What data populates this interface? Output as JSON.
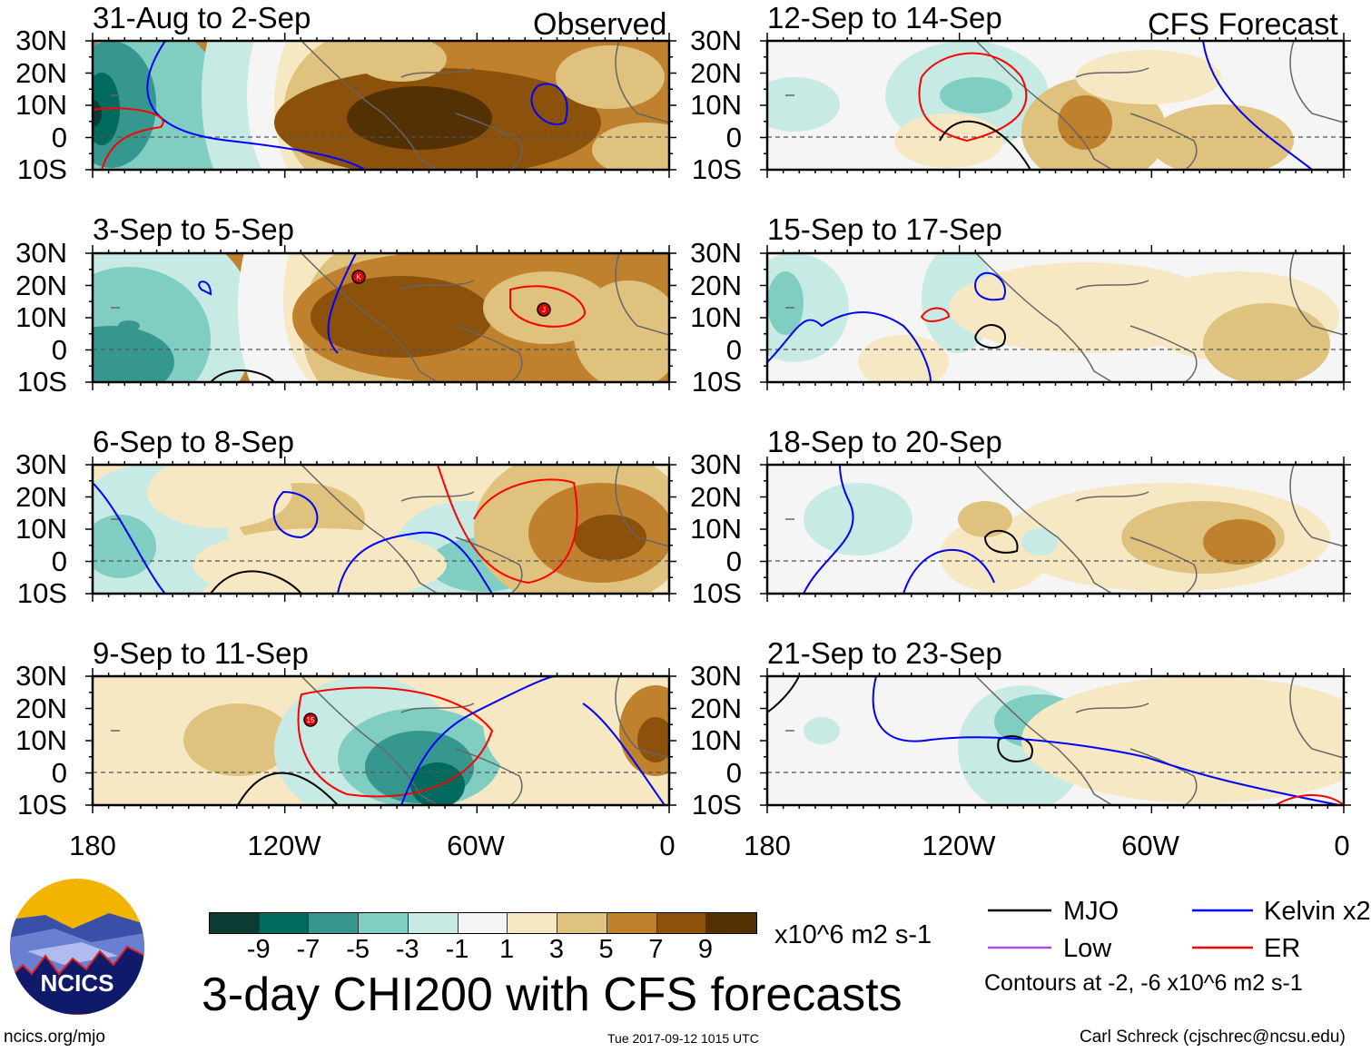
{
  "header": {
    "observed_label": "Observed",
    "forecast_label": "CFS Forecast"
  },
  "panels": [
    {
      "title": "31-Aug to 2-Sep",
      "type": "observed",
      "storms": []
    },
    {
      "title": "3-Sep to 5-Sep",
      "type": "observed",
      "storms": [
        "K",
        "J"
      ]
    },
    {
      "title": "6-Sep to 8-Sep",
      "type": "observed",
      "storms": []
    },
    {
      "title": "9-Sep to 11-Sep",
      "type": "observed",
      "storms": [
        "15"
      ]
    },
    {
      "title": "12-Sep to 14-Sep",
      "type": "forecast",
      "storms": []
    },
    {
      "title": "15-Sep to 17-Sep",
      "type": "forecast",
      "storms": []
    },
    {
      "title": "18-Sep to 20-Sep",
      "type": "forecast",
      "storms": []
    },
    {
      "title": "21-Sep to 23-Sep",
      "type": "forecast",
      "storms": []
    }
  ],
  "axes": {
    "lat_labels": [
      "30N",
      "20N",
      "10N",
      "0",
      "10S"
    ],
    "lon_labels": [
      "180",
      "120W",
      "60W",
      "0"
    ]
  },
  "colorbar": {
    "labels": [
      "-9",
      "-7",
      "-5",
      "-3",
      "-1",
      "1",
      "3",
      "5",
      "7",
      "9"
    ],
    "colors": [
      "#0b3b32",
      "#016a5e",
      "#36978f",
      "#80cdc1",
      "#c7eae5",
      "#f5f5f5",
      "#f6e8c3",
      "#dfc27d",
      "#bf812d",
      "#8c510a",
      "#543005"
    ],
    "units": "x10^6 m2 s-1"
  },
  "title": "3-day CHI200 with CFS forecasts",
  "legend": {
    "items": [
      {
        "label": "MJO",
        "color": "#000000"
      },
      {
        "label": "Kelvin x2",
        "color": "#0000ff"
      },
      {
        "label": "Low",
        "color": "#a050f0"
      },
      {
        "label": "ER",
        "color": "#ff0000"
      }
    ],
    "contours_note": "Contours at -2, -6 x10^6 m2 s-1"
  },
  "footer": {
    "website": "ncics.org/mjo",
    "timestamp": "Tue 2017-09-12 1015 UTC",
    "author": "Carl Schreck (cjschrec@ncsu.edu)",
    "logo_text": "NCICS"
  },
  "chart_data": {
    "type": "heatmap",
    "title": "3-day CHI200 with CFS forecasts",
    "variable": "CHI200 anomaly",
    "units": "x10^6 m2 s-1",
    "lat_range": [
      "10S",
      "30N"
    ],
    "lon_range": [
      "180",
      "0"
    ],
    "levels": [
      -9,
      -7,
      -5,
      -3,
      -1,
      1,
      3,
      5,
      7,
      9
    ],
    "contour_levels": [
      -2,
      -6
    ],
    "legend": [
      "MJO",
      "Kelvin x2",
      "Low",
      "ER"
    ]
  }
}
